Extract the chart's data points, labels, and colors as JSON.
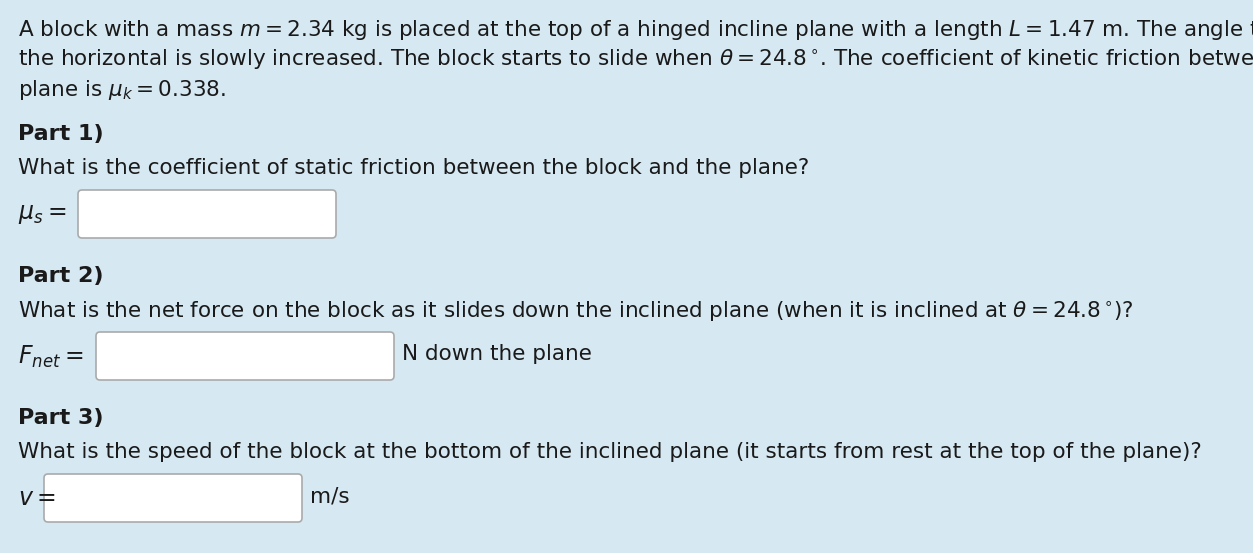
{
  "background_color": "#d6e8f2",
  "text_color": "#1a1a1a",
  "intro_line1": "A block with a mass $m = 2.34$ kg is placed at the top of a hinged incline plane with a length $L = 1.47$ m. The angle the plane makes with",
  "intro_line2": "the horizontal is slowly increased. The block starts to slide when $\\theta = 24.8\\,^{\\circ}$. The coefficient of kinetic friction between the block and the",
  "intro_line3": "plane is $\\mu_k = 0.338$.",
  "part1_label": "Part 1)",
  "part1_question": "What is the coefficient of static friction between the block and the plane?",
  "part1_ans_label": "$\\mu_s =$",
  "part2_label": "Part 2)",
  "part2_question": "What is the net force on the block as it slides down the inclined plane (when it is inclined at $\\theta = 24.8\\,^{\\circ}$)?",
  "part2_ans_label": "$F_{net} =$",
  "part2_ans_suffix": "N down the plane",
  "part3_label": "Part 3)",
  "part3_question": "What is the speed of the block at the bottom of the inclined plane (it starts from rest at the top of the plane)?",
  "part3_ans_label": "$v =$",
  "part3_ans_suffix": "m/s",
  "box_facecolor": "#ffffff",
  "box_edgecolor": "#aaaaaa",
  "font_size_body": 15.5,
  "font_size_part": 16.0,
  "font_size_ans_label": 17.0
}
